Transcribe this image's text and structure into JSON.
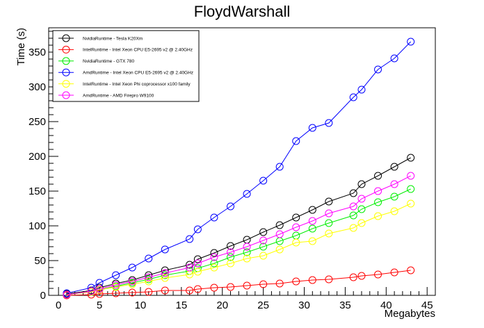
{
  "chart_data": {
    "type": "line",
    "title": "FloydWarshall",
    "xlabel": "Megabytes",
    "ylabel": "Time (s)",
    "xlim": [
      -1.2,
      46
    ],
    "ylim": [
      0,
      385
    ],
    "xticks": [
      0,
      5,
      10,
      15,
      20,
      25,
      30,
      35,
      40,
      45
    ],
    "yticks": [
      0,
      50,
      100,
      150,
      200,
      250,
      300,
      350
    ],
    "grid": false,
    "legend_position": "top-left",
    "marker": "open-circle",
    "series": [
      {
        "name": "NvidiaRuntime - Tesla K20Xm",
        "color": "#000000",
        "x": [
          1,
          4,
          5,
          7,
          9,
          11,
          13,
          16,
          17,
          19,
          21,
          23,
          25,
          27,
          29,
          31,
          33,
          36,
          37,
          39,
          41,
          43
        ],
        "y": [
          2,
          7,
          11,
          17,
          22,
          29,
          36,
          44,
          52,
          61,
          71,
          80,
          91,
          101,
          112,
          123,
          135,
          147,
          160,
          172,
          185,
          198
        ]
      },
      {
        "name": "IntelRuntime - Intel Xeon CPU E5-2695 v2 @ 2.40GHz",
        "color": "#ff0000",
        "x": [
          1,
          4,
          5,
          7,
          9,
          11,
          13,
          16,
          17,
          19,
          21,
          23,
          25,
          27,
          29,
          31,
          33,
          36,
          37,
          39,
          41,
          43
        ],
        "y": [
          0,
          1,
          2,
          3,
          4,
          5,
          7,
          7,
          9,
          11,
          12,
          14,
          16,
          17,
          20,
          22,
          23,
          26,
          28,
          30,
          33,
          36
        ]
      },
      {
        "name": "NvidiaRuntime - GTX 780",
        "color": "#00ee00",
        "x": [
          1,
          4,
          5,
          7,
          9,
          11,
          13,
          16,
          17,
          19,
          21,
          23,
          25,
          27,
          29,
          31,
          33,
          36,
          37,
          39,
          41,
          43
        ],
        "y": [
          1,
          5,
          8,
          13,
          18,
          23,
          29,
          35,
          39,
          46,
          55,
          62,
          70,
          78,
          86,
          96,
          104,
          115,
          124,
          134,
          142,
          153
        ]
      },
      {
        "name": "AmdRuntime - Intel Xeon CPU E5-2695 v2 @ 2.40GHz",
        "color": "#0000ff",
        "x": [
          1,
          4,
          5,
          7,
          9,
          11,
          13,
          16,
          17,
          19,
          21,
          23,
          25,
          27,
          29,
          31,
          33,
          36,
          37,
          39,
          41,
          43
        ],
        "y": [
          3,
          11,
          18,
          29,
          40,
          53,
          66,
          81,
          95,
          112,
          128,
          146,
          165,
          185,
          222,
          241,
          248,
          285,
          296,
          325,
          341,
          365
        ]
      },
      {
        "name": "IntelRuntime - Intel Xeon Phi coprocessor x100 family",
        "color": "#ffff00",
        "x": [
          1,
          4,
          5,
          7,
          9,
          11,
          13,
          16,
          17,
          19,
          21,
          23,
          25,
          27,
          29,
          31,
          33,
          36,
          37,
          39,
          41,
          43
        ],
        "y": [
          1,
          5,
          8,
          12,
          16,
          20,
          25,
          30,
          34,
          40,
          46,
          53,
          57,
          66,
          76,
          78,
          89,
          97,
          104,
          114,
          121,
          132
        ]
      },
      {
        "name": "AmdRuntime - AMD Firepro W9100",
        "color": "#ff00ff",
        "x": [
          1,
          4,
          5,
          7,
          9,
          11,
          13,
          16,
          17,
          19,
          21,
          23,
          25,
          27,
          29,
          31,
          33,
          36,
          37,
          39,
          41,
          43
        ],
        "y": [
          1,
          6,
          9,
          15,
          20,
          26,
          32,
          40,
          46,
          55,
          62,
          70,
          79,
          88,
          98,
          107,
          118,
          128,
          139,
          150,
          160,
          172
        ]
      }
    ]
  }
}
